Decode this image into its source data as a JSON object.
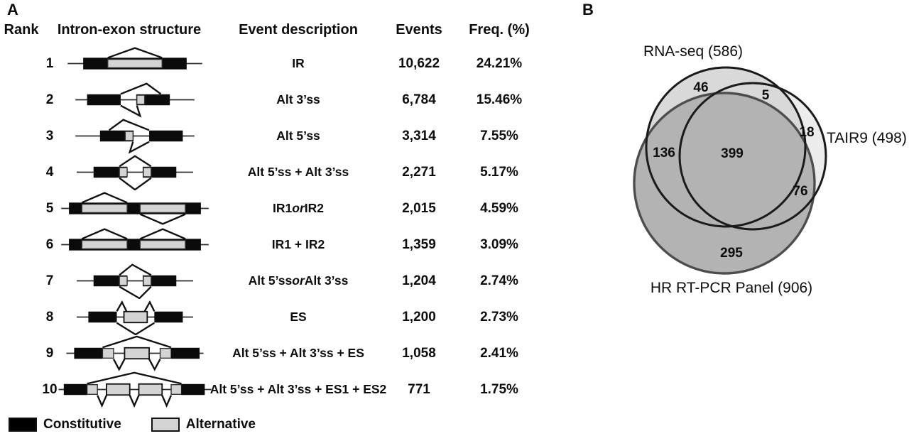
{
  "panel_a": {
    "label": "A",
    "table": {
      "headers": [
        "Rank",
        "Intron-exon structure",
        "Event description",
        "Events",
        "Freq. (%)"
      ],
      "rows": [
        {
          "rank": "1",
          "structure": "ir",
          "desc": [
            {
              "t": "IR"
            }
          ],
          "events": "10,622",
          "freq": "24.21%"
        },
        {
          "rank": "2",
          "structure": "alt3",
          "desc": [
            {
              "t": "Alt 3’ss"
            }
          ],
          "events": "6,784",
          "freq": "15.46%"
        },
        {
          "rank": "3",
          "structure": "alt5",
          "desc": [
            {
              "t": "Alt 5’ss"
            }
          ],
          "events": "3,314",
          "freq": "7.55%"
        },
        {
          "rank": "4",
          "structure": "alt5_alt3",
          "desc": [
            {
              "t": "Alt 5’ss + Alt 3’ss"
            }
          ],
          "events": "2,271",
          "freq": "5.17%"
        },
        {
          "rank": "5",
          "structure": "ir1_or_ir2",
          "desc": [
            {
              "t": "IR1 "
            },
            {
              "t": "or",
              "i": true
            },
            {
              "t": " IR2"
            }
          ],
          "events": "2,015",
          "freq": "4.59%"
        },
        {
          "rank": "6",
          "structure": "ir1_ir2",
          "desc": [
            {
              "t": "IR1 + IR2"
            }
          ],
          "events": "1,359",
          "freq": "3.09%"
        },
        {
          "rank": "7",
          "structure": "alt5_or_alt3",
          "desc": [
            {
              "t": "Alt 5’ss "
            },
            {
              "t": "or",
              "i": true
            },
            {
              "t": " Alt 3’ss"
            }
          ],
          "events": "1,204",
          "freq": "2.74%"
        },
        {
          "rank": "8",
          "structure": "es",
          "desc": [
            {
              "t": "ES"
            }
          ],
          "events": "1,200",
          "freq": "2.73%"
        },
        {
          "rank": "9",
          "structure": "alt5_alt3_es",
          "desc": [
            {
              "t": "Alt 5’ss + Alt 3’ss + ES"
            }
          ],
          "events": "1,058",
          "freq": "2.41%"
        },
        {
          "rank": "10",
          "structure": "alt5_alt3_es1_es2",
          "desc": [
            {
              "t": "Alt 5’ss + Alt 3’ss + ES1 + ES2"
            }
          ],
          "events": "771",
          "freq": "1.75%"
        }
      ]
    },
    "legend": {
      "constitutive": {
        "label": "Constitutive",
        "color": "#000000"
      },
      "alternative": {
        "label": "Alternative",
        "color": "#d4d4d4"
      }
    }
  },
  "panel_b": {
    "label": "B",
    "venn": {
      "sets": [
        {
          "name": "RNA-seq",
          "label": "RNA-seq (586)",
          "total": "586",
          "fill": "#d9d9d9",
          "stroke": "#1a1a1a"
        },
        {
          "name": "TAIR9",
          "label": "TAIR9 (498)",
          "total": "498",
          "fill": "#ececec",
          "stroke": "#1a1a1a"
        },
        {
          "name": "HR RT-PCR Panel",
          "label": "HR RT-PCR Panel (906)",
          "total": "906",
          "fill": "#b3b3b3",
          "stroke": "#4d4d4d"
        }
      ],
      "regions": {
        "rna_only": "46",
        "rna_tair": "5",
        "tair_only": "18",
        "rna_hr": "136",
        "all": "399",
        "tair_hr": "76",
        "hr_only": "295"
      }
    }
  }
}
